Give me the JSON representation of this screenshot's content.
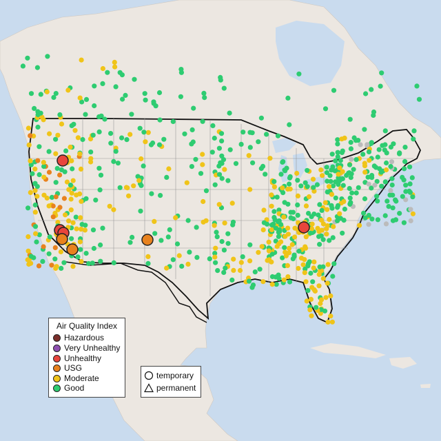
{
  "legend": {
    "title": "Air Quality Index",
    "items": [
      {
        "label": "Hazardous",
        "color": "#7b2f2b"
      },
      {
        "label": "Very Unhealthy",
        "color": "#8e4fb0"
      },
      {
        "label": "Unhealthy",
        "color": "#e8453c"
      },
      {
        "label": "USG",
        "color": "#e8821e"
      },
      {
        "label": "Moderate",
        "color": "#f0c419"
      },
      {
        "label": "Good",
        "color": "#2ecc71"
      }
    ]
  },
  "shape_legend": {
    "items": [
      {
        "label": "temporary",
        "shape": "circle"
      },
      {
        "label": "permanent",
        "shape": "triangle"
      }
    ]
  },
  "colors": {
    "water": "#c9dbee",
    "land": "#ece7e1",
    "border": "#111111",
    "state_lines": "#9a9a9a",
    "no_data": "#bbbbbb"
  },
  "map_markers": {
    "large_unhealthy": [
      {
        "lon": -123.2,
        "lat": 42.7,
        "aqi": "Unhealthy"
      },
      {
        "lon": -118.6,
        "lat": 35.2,
        "aqi": "Unhealthy"
      },
      {
        "lon": -118.2,
        "lat": 34.9,
        "aqi": "Unhealthy"
      },
      {
        "lon": -84.3,
        "lat": 35.7,
        "aqi": "Unhealthy"
      }
    ],
    "large_usg": [
      {
        "lon": -118.0,
        "lat": 34.3,
        "aqi": "USG"
      },
      {
        "lon": -116.4,
        "lat": 33.6,
        "aqi": "USG"
      },
      {
        "lon": -105.9,
        "lat": 35.0,
        "aqi": "USG"
      }
    ]
  }
}
